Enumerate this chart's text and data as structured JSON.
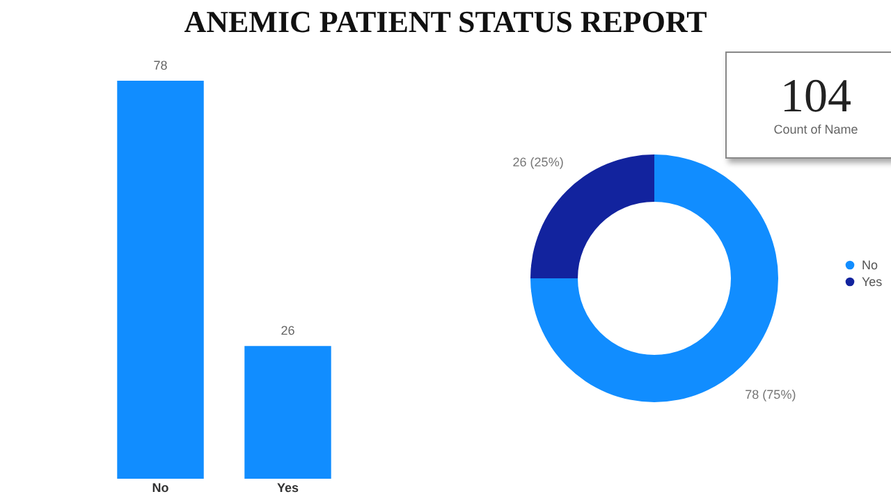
{
  "chart_data": [
    {
      "type": "bar",
      "title": "ANEMIC PATIENT STATUS REPORT",
      "categories": [
        "No",
        "Yes"
      ],
      "values": [
        78,
        26
      ],
      "color": "#118dff",
      "data_labels": true,
      "tick_labels": "x"
    },
    {
      "type": "other",
      "categories": [
        "Count of Name"
      ],
      "values": [
        104
      ],
      "data_labels": true
    },
    {
      "type": "donut",
      "categories": [
        "No",
        "Yes"
      ],
      "values": [
        78,
        26
      ],
      "colors": [
        "#118dff",
        "#12239e"
      ],
      "value_labels": [
        "78 (75%)",
        "26 (25%)"
      ],
      "legend": "right"
    }
  ]
}
